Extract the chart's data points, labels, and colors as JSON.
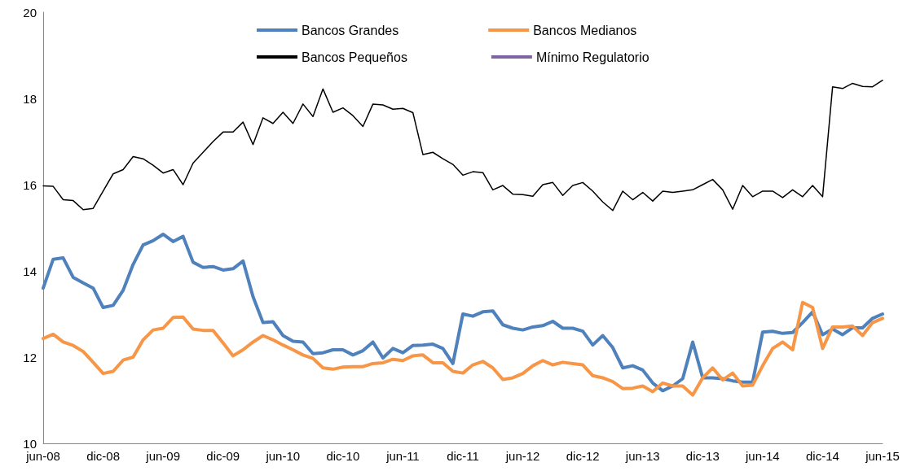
{
  "chart_data": {
    "type": "line",
    "categories": [
      "jun-08",
      null,
      null,
      null,
      null,
      null,
      "dic-08",
      null,
      null,
      null,
      null,
      null,
      "jun-09",
      null,
      null,
      null,
      null,
      null,
      "dic-09",
      null,
      null,
      null,
      null,
      null,
      "jun-10",
      null,
      null,
      null,
      null,
      null,
      "dic-10",
      null,
      null,
      null,
      null,
      null,
      "jun-11",
      null,
      null,
      null,
      null,
      null,
      "dic-11",
      null,
      null,
      null,
      null,
      null,
      "jun-12",
      null,
      null,
      null,
      null,
      null,
      "dic-12",
      null,
      null,
      null,
      null,
      null,
      "jun-13",
      null,
      null,
      null,
      null,
      null,
      "dic-13",
      null,
      null,
      null,
      null,
      null,
      "jun-14",
      null,
      null,
      null,
      null,
      null,
      "dic-14",
      null,
      null,
      null,
      null,
      null,
      "jun-15"
    ],
    "series": [
      {
        "name": "Bancos Grandes",
        "color": "#4f81bd",
        "values": [
          13.6,
          14.27,
          14.3,
          13.85,
          13.72,
          13.6,
          13.15,
          13.2,
          13.55,
          14.15,
          14.6,
          14.7,
          14.85,
          14.68,
          14.8,
          14.2,
          14.08,
          14.1,
          14.02,
          14.05,
          14.23,
          13.4,
          12.8,
          12.82,
          12.5,
          12.37,
          12.35,
          12.08,
          12.1,
          12.17,
          12.17,
          12.05,
          12.15,
          12.35,
          11.98,
          12.2,
          12.1,
          12.27,
          12.28,
          12.3,
          12.2,
          11.85,
          13.0,
          12.95,
          13.05,
          13.07,
          12.75,
          12.67,
          12.63,
          12.7,
          12.73,
          12.83,
          12.67,
          12.67,
          12.6,
          12.28,
          12.5,
          12.22,
          11.75,
          11.8,
          11.7,
          11.4,
          11.22,
          11.33,
          11.5,
          12.35,
          11.52,
          11.52,
          11.5,
          11.45,
          11.42,
          11.42,
          12.58,
          12.6,
          12.55,
          12.57,
          12.8,
          13.05,
          12.52,
          12.65,
          12.52,
          12.68,
          12.68,
          12.9,
          13.0
        ]
      },
      {
        "name": "Bancos Medianos",
        "color": "#f79646",
        "values": [
          12.43,
          12.53,
          12.35,
          12.27,
          12.13,
          11.88,
          11.62,
          11.67,
          11.93,
          12.0,
          12.4,
          12.63,
          12.67,
          12.92,
          12.93,
          12.65,
          12.62,
          12.62,
          12.33,
          12.03,
          12.17,
          12.35,
          12.5,
          12.4,
          12.28,
          12.17,
          12.05,
          11.97,
          11.75,
          11.72,
          11.77,
          11.78,
          11.78,
          11.85,
          11.87,
          11.95,
          11.92,
          12.03,
          12.05,
          11.87,
          11.87,
          11.67,
          11.63,
          11.82,
          11.9,
          11.75,
          11.48,
          11.52,
          11.62,
          11.8,
          11.92,
          11.82,
          11.88,
          11.85,
          11.82,
          11.57,
          11.52,
          11.43,
          11.27,
          11.28,
          11.33,
          11.2,
          11.4,
          11.33,
          11.33,
          11.12,
          11.52,
          11.75,
          11.47,
          11.63,
          11.33,
          11.35,
          11.8,
          12.2,
          12.35,
          12.17,
          13.27,
          13.15,
          12.2,
          12.7,
          12.7,
          12.72,
          12.5,
          12.8,
          12.9
        ]
      },
      {
        "name": "Bancos Pequeños",
        "color": "#000000",
        "values": [
          15.97,
          15.96,
          15.65,
          15.63,
          15.42,
          15.45,
          15.85,
          16.25,
          16.35,
          16.65,
          16.6,
          16.45,
          16.27,
          16.35,
          16.0,
          16.5,
          16.75,
          17.0,
          17.22,
          17.22,
          17.45,
          16.93,
          17.55,
          17.42,
          17.68,
          17.42,
          17.87,
          17.58,
          18.22,
          17.68,
          17.78,
          17.6,
          17.35,
          17.87,
          17.85,
          17.75,
          17.77,
          17.67,
          16.7,
          16.75,
          16.6,
          16.47,
          16.22,
          16.3,
          16.28,
          15.88,
          15.98,
          15.78,
          15.77,
          15.73,
          16.0,
          16.05,
          15.75,
          15.98,
          16.05,
          15.85,
          15.6,
          15.4,
          15.85,
          15.65,
          15.82,
          15.62,
          15.85,
          15.82,
          15.85,
          15.88,
          16.0,
          16.12,
          15.88,
          15.43,
          15.98,
          15.72,
          15.85,
          15.85,
          15.7,
          15.88,
          15.72,
          15.98,
          15.72,
          18.27,
          18.23,
          18.35,
          18.28,
          18.27,
          18.42
        ]
      },
      {
        "name": "Mínimo Regulatorio",
        "color": "#8064a2",
        "values": [
          null,
          null,
          null,
          null,
          null,
          null,
          null,
          null,
          null,
          null,
          null,
          null,
          null,
          null,
          null,
          null,
          null,
          null,
          null,
          null,
          null,
          null,
          null,
          null,
          null,
          null,
          null,
          null,
          null,
          null,
          null,
          null,
          null,
          null,
          null,
          null,
          null,
          null,
          null,
          null,
          null,
          null,
          null,
          null,
          null,
          null,
          null,
          null,
          null,
          null,
          null,
          null,
          null,
          null,
          null,
          null,
          null,
          null,
          null,
          null,
          null,
          null,
          null,
          null,
          null,
          null,
          null,
          null,
          null,
          null,
          null,
          null,
          null,
          null,
          null,
          null,
          null,
          null,
          null,
          null,
          null,
          null,
          null,
          null,
          null
        ]
      }
    ],
    "ylim": [
      10,
      20
    ],
    "yticks": [
      10,
      12,
      14,
      16,
      18,
      20
    ],
    "grid": false,
    "legend": "top",
    "marker": "none",
    "line_style": "solid"
  }
}
